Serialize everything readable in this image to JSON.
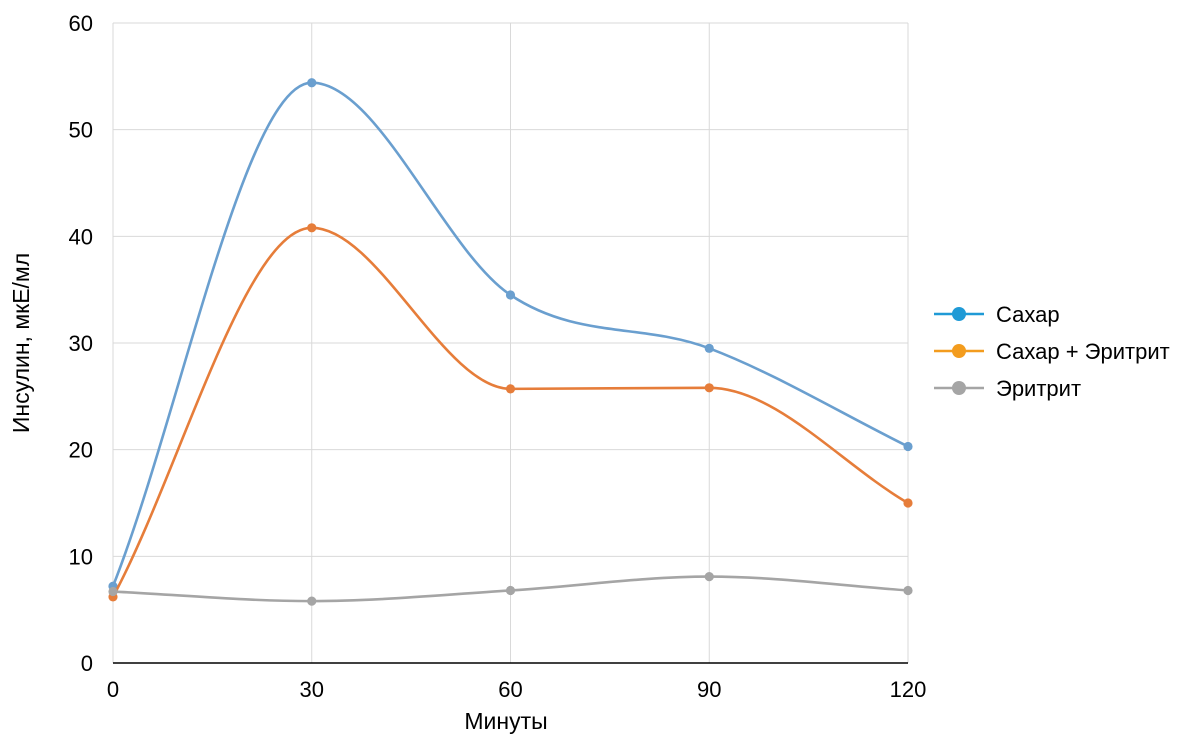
{
  "chart_data": {
    "type": "line",
    "title": "",
    "xlabel": "Минуты",
    "ylabel": "Инсулин, мкЕ/мл",
    "x": [
      0,
      30,
      60,
      90,
      120
    ],
    "xticks": [
      "0",
      "30",
      "60",
      "90",
      "120"
    ],
    "yticks": [
      "0",
      "10",
      "20",
      "30",
      "40",
      "50",
      "60"
    ],
    "ylim": [
      0,
      60
    ],
    "xlim": [
      0,
      120
    ],
    "grid": true,
    "smooth": true,
    "legend_position": "right",
    "series": [
      {
        "name": "Сахар",
        "values": [
          7.2,
          54.4,
          34.5,
          29.5,
          20.3
        ],
        "color": "#6a9fcf",
        "legend_color": "#1f9ad6"
      },
      {
        "name": "Сахар + Эритрит",
        "values": [
          6.2,
          40.8,
          25.7,
          25.8,
          15.0
        ],
        "color": "#e67d3a",
        "legend_color": "#f39c1e"
      },
      {
        "name": "Эритрит",
        "values": [
          6.7,
          5.8,
          6.8,
          8.1,
          6.8
        ],
        "color": "#a5a5a5",
        "legend_color": "#a5a5a5"
      }
    ]
  }
}
